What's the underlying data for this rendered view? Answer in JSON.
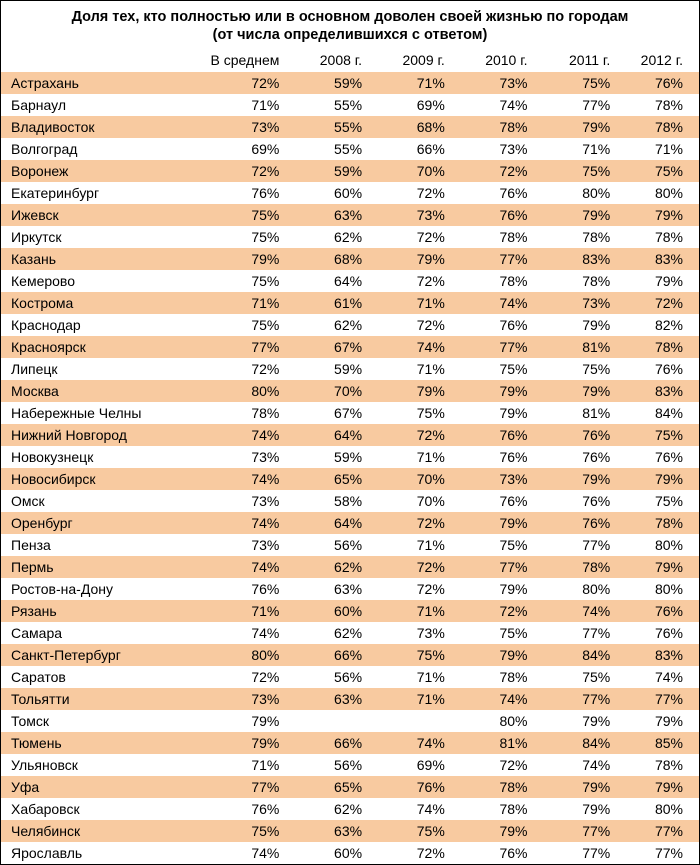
{
  "title": "Доля тех, кто полностью или в основном доволен своей жизнью по городам",
  "subtitle": "(от числа определившихся с ответом)",
  "columns": [
    "В среднем",
    "2008 г.",
    "2009 г.",
    "2010 г.",
    "2011 г.",
    "2012 г."
  ],
  "colors": {
    "stripe_odd": "#f8caa0",
    "stripe_even": "#ffffff",
    "border": "#000000"
  },
  "fontsize_pt": 14,
  "rows": [
    {
      "city": "Астрахань",
      "vals": [
        "72%",
        "59%",
        "71%",
        "73%",
        "75%",
        "76%"
      ]
    },
    {
      "city": "Барнаул",
      "vals": [
        "71%",
        "55%",
        "69%",
        "74%",
        "77%",
        "78%"
      ]
    },
    {
      "city": "Владивосток",
      "vals": [
        "73%",
        "55%",
        "68%",
        "78%",
        "79%",
        "78%"
      ]
    },
    {
      "city": "Волгоград",
      "vals": [
        "69%",
        "55%",
        "66%",
        "73%",
        "71%",
        "71%"
      ]
    },
    {
      "city": "Воронеж",
      "vals": [
        "72%",
        "59%",
        "70%",
        "72%",
        "75%",
        "75%"
      ]
    },
    {
      "city": "Екатеринбург",
      "vals": [
        "76%",
        "60%",
        "72%",
        "76%",
        "80%",
        "80%"
      ]
    },
    {
      "city": "Ижевск",
      "vals": [
        "75%",
        "63%",
        "73%",
        "76%",
        "79%",
        "79%"
      ]
    },
    {
      "city": "Иркутск",
      "vals": [
        "75%",
        "62%",
        "72%",
        "78%",
        "78%",
        "78%"
      ]
    },
    {
      "city": "Казань",
      "vals": [
        "79%",
        "68%",
        "79%",
        "77%",
        "83%",
        "83%"
      ]
    },
    {
      "city": "Кемерово",
      "vals": [
        "75%",
        "64%",
        "72%",
        "78%",
        "78%",
        "79%"
      ]
    },
    {
      "city": "Кострома",
      "vals": [
        "71%",
        "61%",
        "71%",
        "74%",
        "73%",
        "72%"
      ]
    },
    {
      "city": "Краснодар",
      "vals": [
        "75%",
        "62%",
        "72%",
        "76%",
        "79%",
        "82%"
      ]
    },
    {
      "city": "Красноярск",
      "vals": [
        "77%",
        "67%",
        "74%",
        "77%",
        "81%",
        "78%"
      ]
    },
    {
      "city": "Липецк",
      "vals": [
        "72%",
        "59%",
        "71%",
        "75%",
        "75%",
        "76%"
      ]
    },
    {
      "city": "Москва",
      "vals": [
        "80%",
        "70%",
        "79%",
        "79%",
        "79%",
        "83%"
      ]
    },
    {
      "city": "Набережные Челны",
      "vals": [
        "78%",
        "67%",
        "75%",
        "79%",
        "81%",
        "84%"
      ]
    },
    {
      "city": "Нижний Новгород",
      "vals": [
        "74%",
        "64%",
        "72%",
        "76%",
        "76%",
        "75%"
      ]
    },
    {
      "city": "Новокузнецк",
      "vals": [
        "73%",
        "59%",
        "71%",
        "76%",
        "76%",
        "76%"
      ]
    },
    {
      "city": "Новосибирск",
      "vals": [
        "74%",
        "65%",
        "70%",
        "73%",
        "79%",
        "79%"
      ]
    },
    {
      "city": "Омск",
      "vals": [
        "73%",
        "58%",
        "70%",
        "76%",
        "76%",
        "75%"
      ]
    },
    {
      "city": "Оренбург",
      "vals": [
        "74%",
        "64%",
        "72%",
        "79%",
        "76%",
        "78%"
      ]
    },
    {
      "city": "Пенза",
      "vals": [
        "73%",
        "56%",
        "71%",
        "75%",
        "77%",
        "80%"
      ]
    },
    {
      "city": "Пермь",
      "vals": [
        "74%",
        "62%",
        "72%",
        "77%",
        "78%",
        "79%"
      ]
    },
    {
      "city": "Ростов-на-Дону",
      "vals": [
        "76%",
        "63%",
        "72%",
        "79%",
        "80%",
        "80%"
      ]
    },
    {
      "city": "Рязань",
      "vals": [
        "71%",
        "60%",
        "71%",
        "72%",
        "74%",
        "76%"
      ]
    },
    {
      "city": "Самара",
      "vals": [
        "74%",
        "62%",
        "73%",
        "75%",
        "77%",
        "76%"
      ]
    },
    {
      "city": "Санкт-Петербург",
      "vals": [
        "80%",
        "66%",
        "75%",
        "79%",
        "84%",
        "83%"
      ]
    },
    {
      "city": "Саратов",
      "vals": [
        "72%",
        "56%",
        "71%",
        "78%",
        "75%",
        "74%"
      ]
    },
    {
      "city": "Тольятти",
      "vals": [
        "73%",
        "63%",
        "71%",
        "74%",
        "77%",
        "77%"
      ]
    },
    {
      "city": "Томск",
      "vals": [
        "79%",
        "",
        "",
        "80%",
        "79%",
        "79%"
      ]
    },
    {
      "city": "Тюмень",
      "vals": [
        "79%",
        "66%",
        "74%",
        "81%",
        "84%",
        "85%"
      ]
    },
    {
      "city": "Ульяновск",
      "vals": [
        "71%",
        "56%",
        "69%",
        "72%",
        "74%",
        "78%"
      ]
    },
    {
      "city": "Уфа",
      "vals": [
        "77%",
        "65%",
        "76%",
        "78%",
        "79%",
        "79%"
      ]
    },
    {
      "city": "Хабаровск",
      "vals": [
        "76%",
        "62%",
        "74%",
        "78%",
        "79%",
        "80%"
      ]
    },
    {
      "city": "Челябинск",
      "vals": [
        "75%",
        "63%",
        "75%",
        "79%",
        "77%",
        "77%"
      ]
    },
    {
      "city": "Ярославль",
      "vals": [
        "74%",
        "60%",
        "72%",
        "76%",
        "77%",
        "77%"
      ]
    }
  ]
}
